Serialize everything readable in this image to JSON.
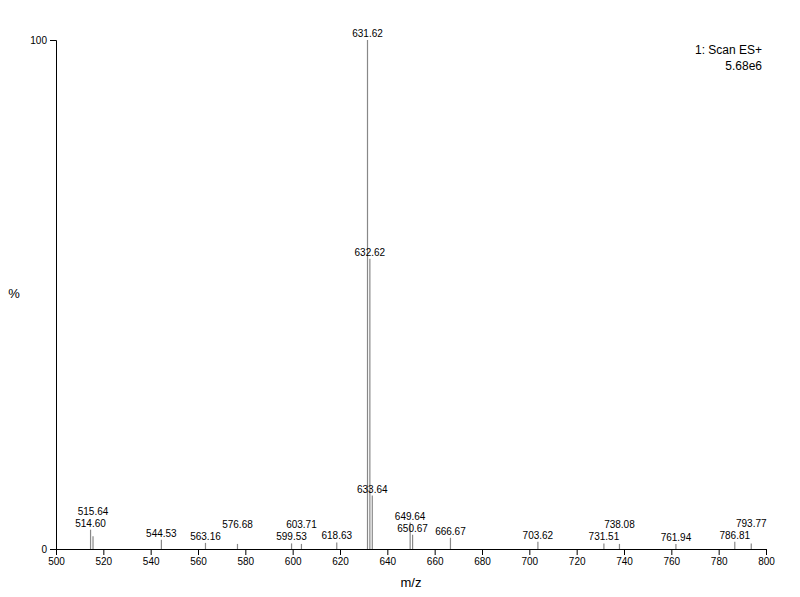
{
  "chart_data": {
    "type": "stem",
    "xlabel": "m/z",
    "ylabel": "%",
    "annotation": [
      "1: Scan ES+",
      "5.68e6"
    ],
    "color": "#888888",
    "xlim": [
      500,
      800
    ],
    "ylim": [
      0,
      100
    ],
    "xticks": [
      500,
      520,
      540,
      560,
      580,
      600,
      620,
      640,
      660,
      680,
      700,
      720,
      740,
      760,
      780,
      800
    ],
    "yticks": [
      0,
      100
    ],
    "x": [
      514.6,
      515.64,
      544.53,
      563.16,
      576.68,
      599.53,
      603.71,
      618.63,
      631.62,
      632.62,
      633.64,
      649.64,
      650.67,
      666.67,
      703.62,
      731.51,
      738.08,
      761.94,
      786.81,
      793.77
    ],
    "values": [
      3.8,
      2.5,
      1.8,
      1.2,
      1.0,
      1.1,
      1.0,
      1.3,
      100.0,
      57.0,
      10.5,
      5.2,
      2.8,
      2.2,
      1.4,
      1.1,
      1.0,
      1.0,
      1.4,
      1.1
    ],
    "x_labels": [
      "514.60",
      "515.64",
      "544.53",
      "563.16",
      "576.68",
      "599.53",
      "603.71",
      "618.63",
      "631.62",
      "632.62",
      "633.64",
      "649.64",
      "650.67",
      "666.67",
      "703.62",
      "731.51",
      "738.08",
      "761.94",
      "786.81",
      "793.77"
    ]
  }
}
